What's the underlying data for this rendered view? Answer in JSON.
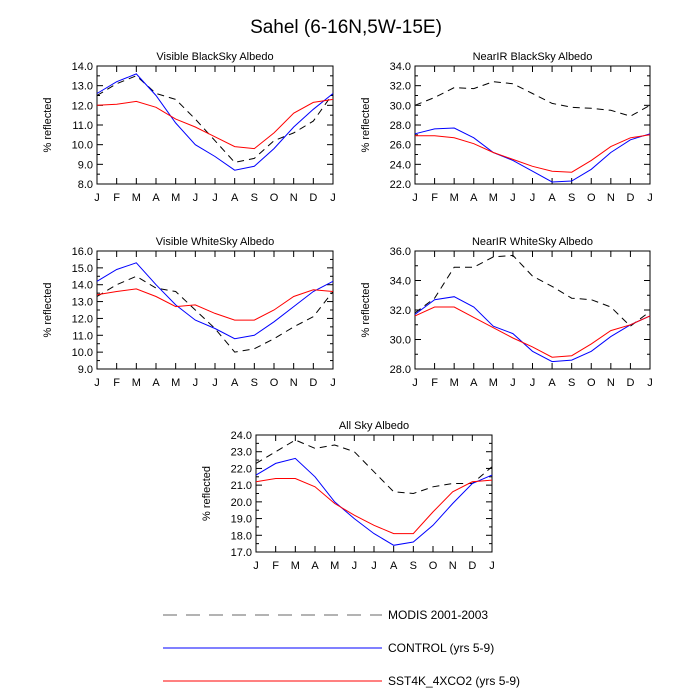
{
  "title": "Sahel (6-16N,5W-15E)",
  "legend": [
    {
      "name": "MODIS 2001-2003",
      "color": "#000000",
      "dash": true
    },
    {
      "name": "CONTROL (yrs 5-9)",
      "color": "#0000ff",
      "dash": false
    },
    {
      "name": "SST4K_4XCO2 (yrs 5-9)",
      "color": "#ff0000",
      "dash": false
    }
  ],
  "chart_data": [
    {
      "type": "line",
      "title": "Visible BlackSky Albedo",
      "ylabel": "% reflected",
      "xlabel": "",
      "categories": [
        "J",
        "F",
        "M",
        "A",
        "M",
        "J",
        "J",
        "A",
        "S",
        "O",
        "N",
        "D",
        "J"
      ],
      "ylim": [
        8.0,
        14.0
      ],
      "yticks": [
        "8.0",
        "9.0",
        "10.0",
        "11.0",
        "12.0",
        "13.0",
        "14.0"
      ],
      "series": [
        {
          "name": "MODIS 2001-2003",
          "values": [
            12.5,
            13.1,
            13.5,
            12.6,
            12.3,
            11.3,
            10.2,
            9.1,
            9.3,
            10.2,
            10.6,
            11.2,
            12.6
          ]
        },
        {
          "name": "CONTROL (yrs 5-9)",
          "values": [
            12.6,
            13.2,
            13.6,
            12.5,
            11.1,
            10.0,
            9.4,
            8.7,
            8.9,
            9.8,
            10.9,
            11.8,
            12.6
          ]
        },
        {
          "name": "SST4K_4XCO2 (yrs 5-9)",
          "values": [
            12.0,
            12.05,
            12.2,
            11.9,
            11.3,
            10.9,
            10.4,
            9.9,
            9.8,
            10.6,
            11.6,
            12.15,
            12.3
          ]
        }
      ]
    },
    {
      "type": "line",
      "title": "NearIR BlackSky Albedo",
      "ylabel": "% reflected",
      "xlabel": "",
      "categories": [
        "J",
        "F",
        "M",
        "A",
        "M",
        "J",
        "J",
        "A",
        "S",
        "O",
        "N",
        "D",
        "J"
      ],
      "ylim": [
        22.0,
        34.0
      ],
      "yticks": [
        "22.0",
        "24.0",
        "26.0",
        "28.0",
        "30.0",
        "32.0",
        "34.0"
      ],
      "series": [
        {
          "name": "MODIS 2001-2003",
          "values": [
            30.0,
            30.8,
            31.8,
            31.7,
            32.4,
            32.2,
            31.2,
            30.2,
            29.8,
            29.7,
            29.5,
            28.9,
            30.0
          ]
        },
        {
          "name": "CONTROL (yrs 5-9)",
          "values": [
            27.1,
            27.6,
            27.7,
            26.7,
            25.2,
            24.4,
            23.3,
            22.2,
            22.3,
            23.5,
            25.2,
            26.5,
            27.1
          ]
        },
        {
          "name": "SST4K_4XCO2 (yrs 5-9)",
          "values": [
            26.9,
            26.9,
            26.7,
            26.1,
            25.2,
            24.5,
            23.8,
            23.3,
            23.2,
            24.4,
            25.8,
            26.7,
            27.0
          ]
        }
      ]
    },
    {
      "type": "line",
      "title": "Visible WhiteSky Albedo",
      "ylabel": "% reflected",
      "xlabel": "",
      "categories": [
        "J",
        "F",
        "M",
        "A",
        "M",
        "J",
        "J",
        "A",
        "S",
        "O",
        "N",
        "D",
        "J"
      ],
      "ylim": [
        9.0,
        16.0
      ],
      "yticks": [
        "9.0",
        "10.0",
        "11.0",
        "12.0",
        "13.0",
        "14.0",
        "15.0",
        "16.0"
      ],
      "series": [
        {
          "name": "MODIS 2001-2003",
          "values": [
            13.3,
            14.0,
            14.5,
            13.8,
            13.6,
            12.5,
            11.4,
            10.0,
            10.2,
            10.8,
            11.5,
            12.1,
            13.6
          ]
        },
        {
          "name": "CONTROL (yrs 5-9)",
          "values": [
            14.2,
            14.9,
            15.3,
            14.0,
            12.8,
            11.9,
            11.4,
            10.8,
            11.0,
            11.8,
            12.7,
            13.6,
            14.2
          ]
        },
        {
          "name": "SST4K_4XCO2 (yrs 5-9)",
          "values": [
            13.4,
            13.6,
            13.75,
            13.3,
            12.7,
            12.8,
            12.3,
            11.9,
            11.9,
            12.5,
            13.3,
            13.7,
            13.6
          ]
        }
      ]
    },
    {
      "type": "line",
      "title": "NearIR WhiteSky Albedo",
      "ylabel": "% reflected",
      "xlabel": "",
      "categories": [
        "J",
        "F",
        "M",
        "A",
        "M",
        "J",
        "J",
        "A",
        "S",
        "O",
        "N",
        "D",
        "J"
      ],
      "ylim": [
        28.0,
        36.0
      ],
      "yticks": [
        "28.0",
        "30.0",
        "32.0",
        "34.0",
        "36.0"
      ],
      "series": [
        {
          "name": "MODIS 2001-2003",
          "values": [
            31.8,
            32.8,
            34.9,
            34.9,
            35.6,
            35.7,
            34.3,
            33.6,
            32.8,
            32.7,
            32.2,
            30.9,
            31.9
          ]
        },
        {
          "name": "CONTROL (yrs 5-9)",
          "values": [
            31.7,
            32.7,
            32.9,
            32.2,
            30.9,
            30.4,
            29.2,
            28.5,
            28.6,
            29.2,
            30.2,
            31.0,
            31.6
          ]
        },
        {
          "name": "SST4K_4XCO2 (yrs 5-9)",
          "values": [
            31.6,
            32.2,
            32.2,
            31.5,
            30.8,
            30.1,
            29.5,
            28.8,
            28.9,
            29.7,
            30.6,
            31.0,
            31.6
          ]
        }
      ]
    },
    {
      "type": "line",
      "title": "All Sky Albedo",
      "ylabel": "% reflected",
      "xlabel": "",
      "categories": [
        "J",
        "F",
        "M",
        "A",
        "M",
        "J",
        "J",
        "A",
        "S",
        "O",
        "N",
        "D",
        "J"
      ],
      "ylim": [
        17.0,
        24.0
      ],
      "yticks": [
        "17.0",
        "18.0",
        "19.0",
        "20.0",
        "21.0",
        "22.0",
        "23.0",
        "24.0"
      ],
      "series": [
        {
          "name": "MODIS 2001-2003",
          "values": [
            22.3,
            23.0,
            23.7,
            23.2,
            23.4,
            23.0,
            21.8,
            20.6,
            20.5,
            20.9,
            21.1,
            21.1,
            22.1
          ]
        },
        {
          "name": "CONTROL (yrs 5-9)",
          "values": [
            21.6,
            22.3,
            22.6,
            21.5,
            20.0,
            19.0,
            18.1,
            17.4,
            17.6,
            18.6,
            19.9,
            21.1,
            21.6
          ]
        },
        {
          "name": "SST4K_4XCO2 (yrs 5-9)",
          "values": [
            21.2,
            21.4,
            21.4,
            20.9,
            19.9,
            19.2,
            18.6,
            18.1,
            18.1,
            19.4,
            20.6,
            21.2,
            21.3
          ]
        }
      ]
    }
  ]
}
